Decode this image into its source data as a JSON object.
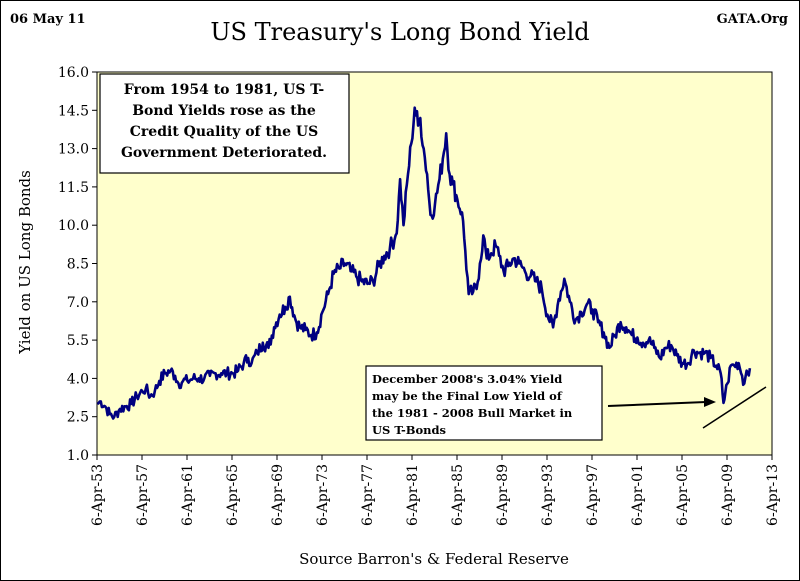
{
  "header": {
    "date_stamp": "06 May 11",
    "brand": "GATA.Org"
  },
  "chart_data": {
    "type": "line",
    "title": "US Treasury's Long Bond Yield",
    "xlabel": "Source Barron's & Federal Reserve",
    "ylabel": "Yield on US Long Bonds",
    "ylim": [
      1.0,
      16.0
    ],
    "yticks": [
      "1.0",
      "2.5",
      "4.0",
      "5.5",
      "7.0",
      "8.5",
      "10.0",
      "11.5",
      "13.0",
      "14.5",
      "16.0"
    ],
    "xticks": [
      "6-Apr-53",
      "6-Apr-57",
      "6-Apr-61",
      "6-Apr-65",
      "6-Apr-69",
      "6-Apr-73",
      "6-Apr-77",
      "6-Apr-81",
      "6-Apr-85",
      "6-Apr-89",
      "6-Apr-93",
      "6-Apr-97",
      "6-Apr-01",
      "6-Apr-05",
      "6-Apr-09",
      "6-Apr-13"
    ],
    "xlim": [
      1953.26,
      2013.26
    ],
    "grid": false,
    "legend": "none",
    "line_color": "#000080",
    "plot_background": "#ffffcc",
    "series": [
      {
        "x": [
          1953.3,
          1953.6,
          1954.0,
          1954.4,
          1954.8,
          1955.3,
          1955.8,
          1956.3,
          1956.8,
          1957.3,
          1957.6,
          1958.0,
          1958.4,
          1958.8,
          1959.3,
          1959.8,
          1960.2,
          1960.5,
          1960.9,
          1961.3,
          1961.8,
          1962.3,
          1962.8,
          1963.3,
          1963.8,
          1964.3,
          1964.8,
          1965.3,
          1965.8,
          1966.3,
          1966.7,
          1967.0,
          1967.5,
          1968.0,
          1968.5,
          1969.0,
          1969.5,
          1970.0,
          1970.4,
          1970.9,
          1971.3,
          1971.8,
          1972.3,
          1972.8,
          1973.3,
          1973.8,
          1974.3,
          1974.8,
          1975.3,
          1975.8,
          1976.3,
          1976.8,
          1977.3,
          1977.8,
          1978.3,
          1978.8,
          1979.3,
          1979.8,
          1980.0,
          1980.2,
          1980.5,
          1980.9,
          1981.2,
          1981.5,
          1981.8,
          1982.0,
          1982.3,
          1982.6,
          1982.9,
          1983.3,
          1983.7,
          1984.0,
          1984.3,
          1984.6,
          1984.9,
          1985.3,
          1985.7,
          1986.0,
          1986.3,
          1986.7,
          1987.0,
          1987.3,
          1987.6,
          1987.9,
          1988.3,
          1988.7,
          1989.0,
          1989.4,
          1989.8,
          1990.3,
          1990.8,
          1991.3,
          1991.8,
          1992.3,
          1992.8,
          1993.3,
          1993.8,
          1994.3,
          1994.8,
          1995.3,
          1995.8,
          1996.3,
          1996.8,
          1997.3,
          1997.8,
          1998.3,
          1998.8,
          1999.3,
          1999.8,
          2000.3,
          2000.8,
          2001.3,
          2001.8,
          2002.3,
          2002.8,
          2003.3,
          2003.8,
          2004.3,
          2004.8,
          2005.3,
          2005.8,
          2006.3,
          2006.8,
          2007.3,
          2007.8,
          2008.3,
          2008.7,
          2008.95,
          2009.1,
          2009.3,
          2009.6,
          2009.9,
          2010.3,
          2010.6,
          2010.8,
          2011.0,
          2011.3
        ],
        "values": [
          3.0,
          3.1,
          2.9,
          2.6,
          2.5,
          2.8,
          2.9,
          3.0,
          3.3,
          3.5,
          3.6,
          3.3,
          3.5,
          3.9,
          4.2,
          4.3,
          4.1,
          3.8,
          3.9,
          3.9,
          4.0,
          4.0,
          4.0,
          4.1,
          4.2,
          4.2,
          4.2,
          4.2,
          4.3,
          4.6,
          4.8,
          4.6,
          5.0,
          5.4,
          5.2,
          6.0,
          6.5,
          6.8,
          7.2,
          6.3,
          6.0,
          5.9,
          5.7,
          5.8,
          6.6,
          7.3,
          8.1,
          8.3,
          8.5,
          8.2,
          8.0,
          7.8,
          7.7,
          7.8,
          8.4,
          8.8,
          9.1,
          9.6,
          10.2,
          11.8,
          10.0,
          12.0,
          13.2,
          14.6,
          13.9,
          14.2,
          13.0,
          12.0,
          10.4,
          10.8,
          11.8,
          12.6,
          13.6,
          12.0,
          11.6,
          11.0,
          10.5,
          9.0,
          7.3,
          7.4,
          7.5,
          8.5,
          9.6,
          8.7,
          8.9,
          9.2,
          8.8,
          8.2,
          8.4,
          8.7,
          8.5,
          8.2,
          8.0,
          7.8,
          7.5,
          6.5,
          6.0,
          7.1,
          7.9,
          7.0,
          6.3,
          6.6,
          6.9,
          6.7,
          6.2,
          5.8,
          5.2,
          5.7,
          6.2,
          6.0,
          5.7,
          5.6,
          5.4,
          5.5,
          5.2,
          4.8,
          5.2,
          5.3,
          4.9,
          4.6,
          4.6,
          5.1,
          5.0,
          5.0,
          4.8,
          4.5,
          4.2,
          3.04,
          3.4,
          3.8,
          4.5,
          4.5,
          4.6,
          4.1,
          3.8,
          4.3,
          4.4
        ]
      }
    ],
    "annotations": [
      {
        "id": "callout-top",
        "lines": [
          "From 1954 to 1981, US T-",
          "Bond Yields rose as the",
          "Credit Quality of the US",
          "Government Deteriorated."
        ]
      },
      {
        "id": "callout-bottom",
        "lines": [
          "December 2008's 3.04% Yield",
          "may be the Final Low Yield of",
          "the 1981 - 2008 Bull Market in",
          "US T-Bonds"
        ],
        "arrow_target": {
          "x": 2008.9,
          "y": 3.2
        }
      }
    ]
  }
}
